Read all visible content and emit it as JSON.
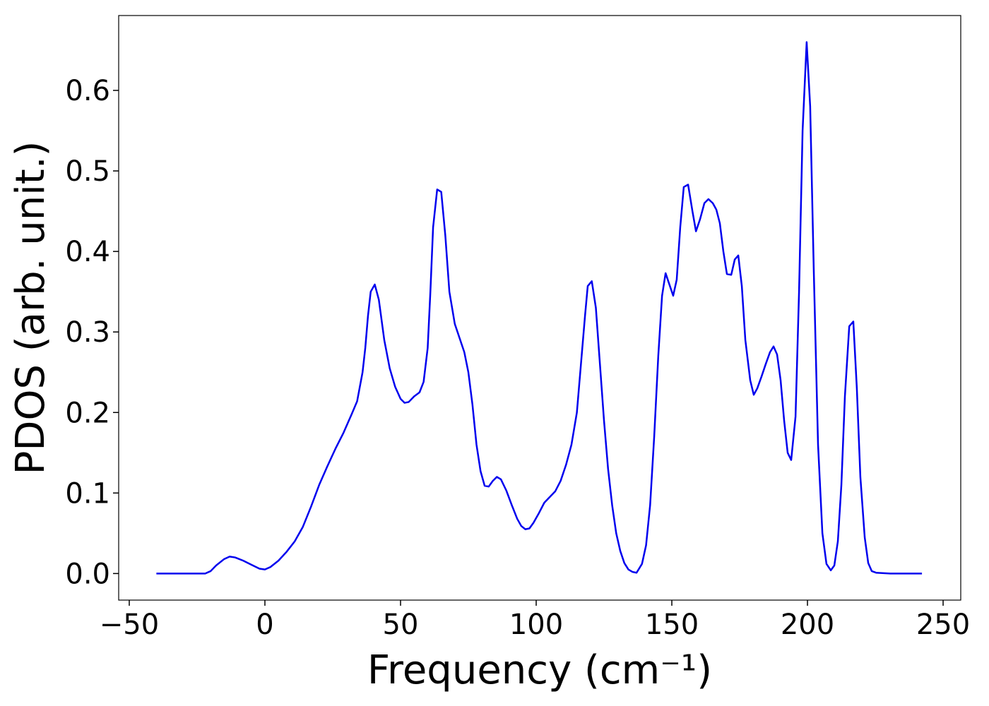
{
  "chart_data": {
    "type": "line",
    "xlabel": "Frequency (cm⁻¹)",
    "ylabel": "PDOS (arb. unit.)",
    "xlim": [
      -53.9,
      256.5
    ],
    "ylim": [
      -0.033,
      0.693
    ],
    "xticks": [
      {
        "value": -50,
        "label": "−50"
      },
      0,
      50,
      100,
      150,
      200,
      250
    ],
    "yticks": [
      {
        "value": 0,
        "label": "0.0"
      },
      0.1,
      0.2,
      0.3,
      0.4,
      0.5,
      0.6
    ],
    "series": [
      {
        "color": "#0000ee",
        "x": [
          -40,
          -30,
          -22,
          -20,
          -18,
          -15,
          -13,
          -11,
          -8,
          -5,
          -2,
          0,
          2,
          5,
          8,
          11,
          14,
          17,
          20,
          23,
          26,
          29,
          32,
          34,
          36,
          37,
          38,
          39,
          40.5,
          42,
          44,
          46,
          48,
          50,
          51.5,
          53,
          55,
          57,
          58.5,
          60,
          61,
          62,
          63.5,
          65,
          66.5,
          68,
          70,
          72,
          73.5,
          75,
          76.5,
          78,
          79.5,
          81,
          82.5,
          84,
          85.5,
          87,
          89,
          91,
          93,
          94.5,
          96,
          97.5,
          99,
          101,
          103,
          105,
          107,
          109,
          111,
          113,
          115,
          116.5,
          118,
          119,
          120.5,
          122,
          123.5,
          125,
          126.5,
          128,
          129.5,
          131,
          132.5,
          134,
          135.5,
          137,
          139,
          140.5,
          142,
          143.5,
          145,
          146.4,
          147.7,
          149,
          150.5,
          151.8,
          153.1,
          154.4,
          156,
          157.6,
          158.9,
          160.4,
          162,
          163.5,
          165.1,
          166.4,
          167.7,
          169,
          170.3,
          171.9,
          173.2,
          174.5,
          175.8,
          177.1,
          178.9,
          180.2,
          181.5,
          183.1,
          184.6,
          186.2,
          187.5,
          188.8,
          190.1,
          191.4,
          192.7,
          194,
          195.6,
          196.9,
          198.2,
          199.7,
          201,
          202.3,
          203.9,
          205.5,
          207,
          208.6,
          209.9,
          211.2,
          212.5,
          213.8,
          215.4,
          216.9,
          218.2,
          219.5,
          221.1,
          222.4,
          223.7,
          225.3,
          230.5,
          242.2
        ],
        "values": [
          0,
          0,
          0,
          0.003,
          0.01,
          0.018,
          0.021,
          0.02,
          0.016,
          0.011,
          0.006,
          0.005,
          0.008,
          0.016,
          0.027,
          0.04,
          0.058,
          0.083,
          0.11,
          0.133,
          0.155,
          0.175,
          0.198,
          0.214,
          0.25,
          0.28,
          0.32,
          0.35,
          0.359,
          0.34,
          0.29,
          0.255,
          0.232,
          0.217,
          0.212,
          0.213,
          0.22,
          0.225,
          0.238,
          0.28,
          0.35,
          0.43,
          0.477,
          0.474,
          0.42,
          0.35,
          0.31,
          0.29,
          0.275,
          0.25,
          0.21,
          0.16,
          0.127,
          0.109,
          0.108,
          0.115,
          0.12,
          0.117,
          0.103,
          0.085,
          0.068,
          0.059,
          0.055,
          0.056,
          0.063,
          0.075,
          0.088,
          0.095,
          0.102,
          0.115,
          0.135,
          0.16,
          0.2,
          0.26,
          0.32,
          0.357,
          0.363,
          0.33,
          0.26,
          0.19,
          0.13,
          0.085,
          0.05,
          0.028,
          0.013,
          0.005,
          0.002,
          0.001,
          0.012,
          0.035,
          0.085,
          0.17,
          0.27,
          0.345,
          0.373,
          0.36,
          0.345,
          0.365,
          0.43,
          0.48,
          0.483,
          0.45,
          0.425,
          0.44,
          0.46,
          0.465,
          0.46,
          0.452,
          0.435,
          0.4,
          0.372,
          0.371,
          0.39,
          0.395,
          0.357,
          0.29,
          0.24,
          0.222,
          0.23,
          0.245,
          0.26,
          0.275,
          0.282,
          0.272,
          0.24,
          0.19,
          0.15,
          0.141,
          0.195,
          0.35,
          0.55,
          0.66,
          0.58,
          0.38,
          0.16,
          0.05,
          0.012,
          0.004,
          0.01,
          0.04,
          0.11,
          0.22,
          0.307,
          0.313,
          0.23,
          0.12,
          0.045,
          0.013,
          0.003,
          0.001,
          0,
          0
        ]
      }
    ]
  }
}
